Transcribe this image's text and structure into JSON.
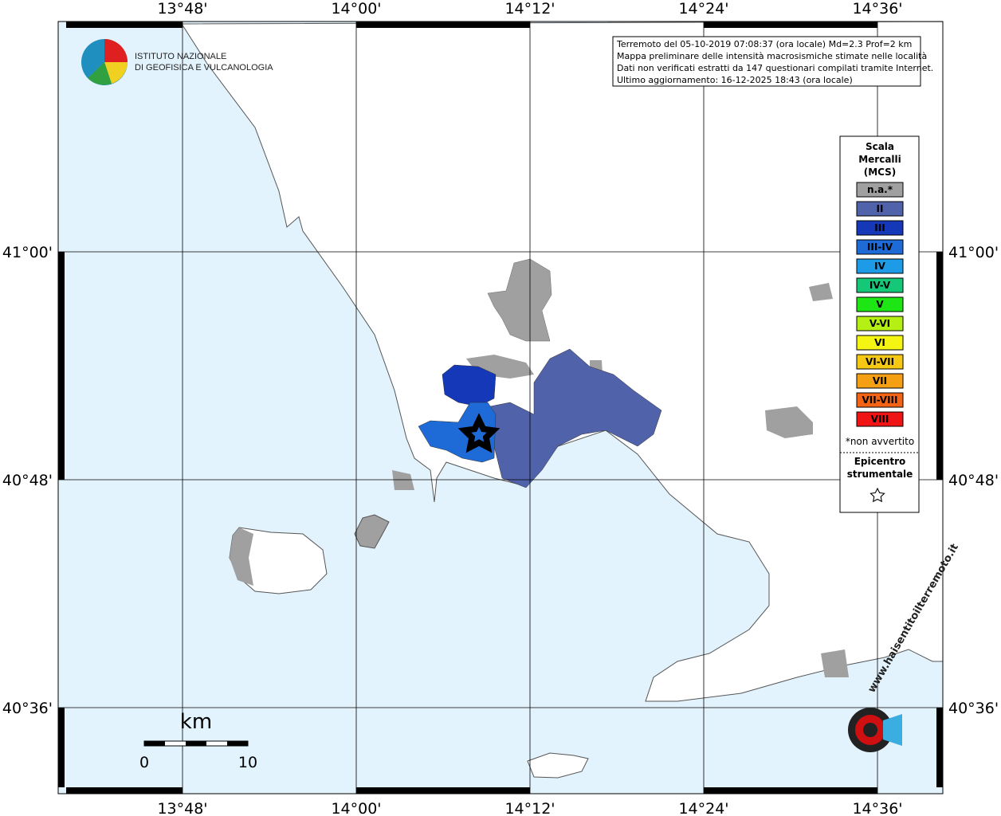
{
  "map": {
    "lon_labels": [
      "13°48'",
      "14°00'",
      "14°12'",
      "14°24'",
      "14°36'"
    ],
    "lat_labels": [
      "41°00'",
      "40°48'",
      "40°36'"
    ],
    "info_lines": [
      "Terremoto del 05-10-2019 07:08:37 (ora locale) Md=2.3 Prof=2 km",
      "Mappa preliminare delle intensità macrosismiche stimate nelle località",
      "Dati non verificati estratti da 147 questionari compilati tramite Internet.",
      "Ultimo aggiornamento: 16-12-2025 18:43 (ora locale)"
    ],
    "logo_lines": [
      "ISTITUTO NAZIONALE",
      "DI GEOFISICA E VULCANOLOGIA"
    ],
    "legend": {
      "title_lines": [
        "Scala",
        "Mercalli",
        "(MCS)"
      ],
      "items": [
        {
          "label": "n.a.*",
          "color": "#a0a0a0"
        },
        {
          "label": "II",
          "color": "#5062aa"
        },
        {
          "label": "III",
          "color": "#1438b8"
        },
        {
          "label": "III-IV",
          "color": "#1e6ad6"
        },
        {
          "label": "IV",
          "color": "#1e9be6"
        },
        {
          "label": "IV-V",
          "color": "#14c878"
        },
        {
          "label": "V",
          "color": "#1ee614"
        },
        {
          "label": "V-VI",
          "color": "#b4f014"
        },
        {
          "label": "VI",
          "color": "#f5f514"
        },
        {
          "label": "VI-VII",
          "color": "#f5c814"
        },
        {
          "label": "VII",
          "color": "#f5a014"
        },
        {
          "label": "VII-VIII",
          "color": "#f56414"
        },
        {
          "label": "VIII",
          "color": "#f01414"
        }
      ],
      "note": "*non avvertito",
      "epicenter_lines": [
        "Epicentro",
        "strumentale"
      ]
    },
    "scale": {
      "unit": "km",
      "ticks": [
        "0",
        "10"
      ]
    },
    "site": "www.haisentitoilterremoto.it"
  }
}
